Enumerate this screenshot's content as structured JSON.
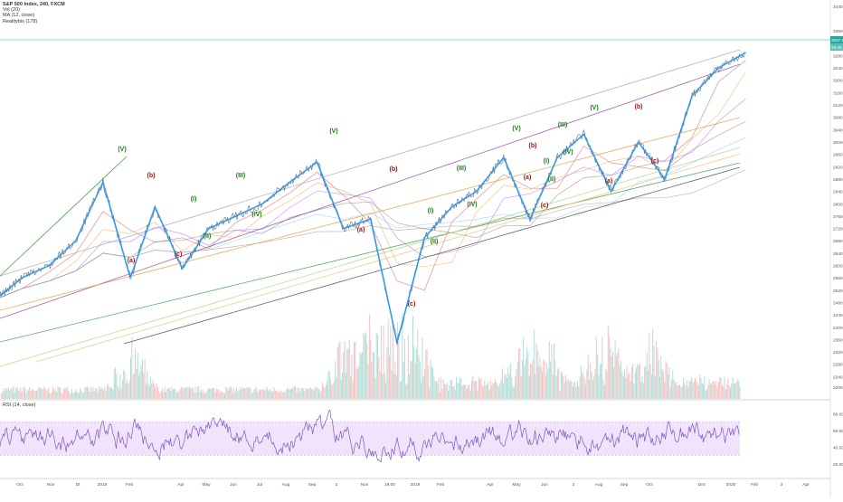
{
  "legend": {
    "title": "S&P 500 Index, 240, FXCM",
    "items": [
      "Vol (20)",
      "MA (12, close)",
      "Realitybis (178)"
    ]
  },
  "rsi_label": "RSI (14, close)",
  "colors": {
    "price_line": "#2196f3",
    "wave_green": "#1b7a1b",
    "wave_red": "#a11313",
    "rsi_line": "#7e57c2",
    "rsi_band": "#f1e3fb",
    "vol_up": "#9fd6d0",
    "vol_down": "#f2b3b3",
    "current_price_bg": "#26a69a"
  },
  "chart_data": {
    "type": "line",
    "title": "S&P 500 Index, 240, FXCM",
    "y_axis": {
      "ticks": [
        "3440.0",
        "3360.0",
        "3280.0",
        "3240.0",
        "3200.0",
        "3160.0",
        "3120.0",
        "3080.0",
        "3040.0",
        "3000.0",
        "2960.0",
        "2920.0",
        "2880.0",
        "2840.0",
        "2800.0",
        "2760.0",
        "2720.0",
        "2680.0",
        "2640.0",
        "2600.0",
        "2560.0",
        "2520.0",
        "2480.0",
        "2440.0",
        "2400.0",
        "2360.0",
        "2320.0",
        "2280.0",
        "2240.0",
        "2206.5",
        "2176.5"
      ]
    },
    "current_price": {
      "value": "3287.8",
      "sub": "34:45"
    },
    "x_axis": {
      "labels": [
        "Oct",
        "Nov",
        "Dt",
        "2018",
        "Feb",
        "Apr",
        "May",
        "Jun",
        "Jul",
        "Aug",
        "Sep",
        "2",
        "Nov",
        "19.00",
        "2019",
        "Feb",
        "Apr",
        "May",
        "Jun",
        "2",
        "Aug",
        "Sep",
        "Oct",
        "Dec",
        "2020",
        "Feb",
        "3",
        "Apr"
      ]
    },
    "price_series": [
      [
        "2017-09",
        2490
      ],
      [
        "2017-10",
        2560
      ],
      [
        "2017-11",
        2600
      ],
      [
        "2017-12",
        2680
      ],
      [
        "2018-01",
        2870
      ],
      [
        "2018-02",
        2560
      ],
      [
        "2018-03",
        2790
      ],
      [
        "2018-04",
        2590
      ],
      [
        "2018-05",
        2720
      ],
      [
        "2018-06",
        2760
      ],
      [
        "2018-07",
        2800
      ],
      [
        "2018-08",
        2870
      ],
      [
        "2018-09",
        2935
      ],
      [
        "2018-10",
        2720
      ],
      [
        "2018-11",
        2750
      ],
      [
        "2018-12",
        2350
      ],
      [
        "2019-01",
        2690
      ],
      [
        "2019-02",
        2790
      ],
      [
        "2019-03",
        2840
      ],
      [
        "2019-04",
        2950
      ],
      [
        "2019-05",
        2750
      ],
      [
        "2019-06",
        2950
      ],
      [
        "2019-07",
        3025
      ],
      [
        "2019-08",
        2840
      ],
      [
        "2019-09",
        3000
      ],
      [
        "2019-10",
        2880
      ],
      [
        "2019-11",
        3150
      ],
      [
        "2019-12",
        3240
      ],
      [
        "2020-01",
        3290
      ]
    ],
    "wave_labels": [
      {
        "text": "(V)",
        "color": "green",
        "date": "2018-01-26"
      },
      {
        "text": "(a)",
        "color": "red",
        "date": "2018-02-09"
      },
      {
        "text": "(b)",
        "color": "red",
        "date": "2018-03-12"
      },
      {
        "text": "(c)",
        "color": "red",
        "date": "2018-04-02"
      },
      {
        "text": "(I)",
        "color": "green",
        "date": "2018-04-18"
      },
      {
        "text": "(II)",
        "color": "green",
        "date": "2018-05-03"
      },
      {
        "text": "(III)",
        "color": "green",
        "date": "2018-06-12"
      },
      {
        "text": "(IV)",
        "color": "green",
        "date": "2018-06-28"
      },
      {
        "text": "(V)",
        "color": "green",
        "date": "2018-09-20"
      },
      {
        "text": "(a)",
        "color": "red",
        "date": "2018-10-29"
      },
      {
        "text": "(b)",
        "color": "red",
        "date": "2018-11-07"
      },
      {
        "text": "(c)",
        "color": "red",
        "date": "2018-12-24"
      },
      {
        "text": "(I)",
        "color": "green",
        "date": "2019-01-20"
      },
      {
        "text": "(II)",
        "color": "green",
        "date": "2019-01-28"
      },
      {
        "text": "(III)",
        "color": "green",
        "date": "2019-02-25"
      },
      {
        "text": "(IV)",
        "color": "green",
        "date": "2019-03-08"
      },
      {
        "text": "(V)",
        "color": "green",
        "date": "2019-04-30"
      },
      {
        "text": "(b)",
        "color": "red",
        "date": "2019-05-13"
      },
      {
        "text": "(a)",
        "color": "red",
        "date": "2019-05-08"
      },
      {
        "text": "(c)",
        "color": "red",
        "date": "2019-06-03"
      },
      {
        "text": "(I)",
        "color": "green",
        "date": "2019-06-06"
      },
      {
        "text": "(II)",
        "color": "green",
        "date": "2019-06-12"
      },
      {
        "text": "(III)",
        "color": "green",
        "date": "2019-07-03"
      },
      {
        "text": "(IV)",
        "color": "green",
        "date": "2019-07-15"
      },
      {
        "text": "(V)",
        "color": "green",
        "date": "2019-07-26"
      },
      {
        "text": "(a)",
        "color": "red",
        "date": "2019-08-05"
      },
      {
        "text": "(b)",
        "color": "red",
        "date": "2019-09-12"
      },
      {
        "text": "(c)",
        "color": "red",
        "date": "2019-10-02"
      }
    ],
    "rsi": {
      "label": "RSI (14, close)",
      "ticks": [
        "80.00",
        "60.00",
        "40.00",
        "20.00"
      ],
      "band": [
        30,
        70
      ]
    }
  }
}
